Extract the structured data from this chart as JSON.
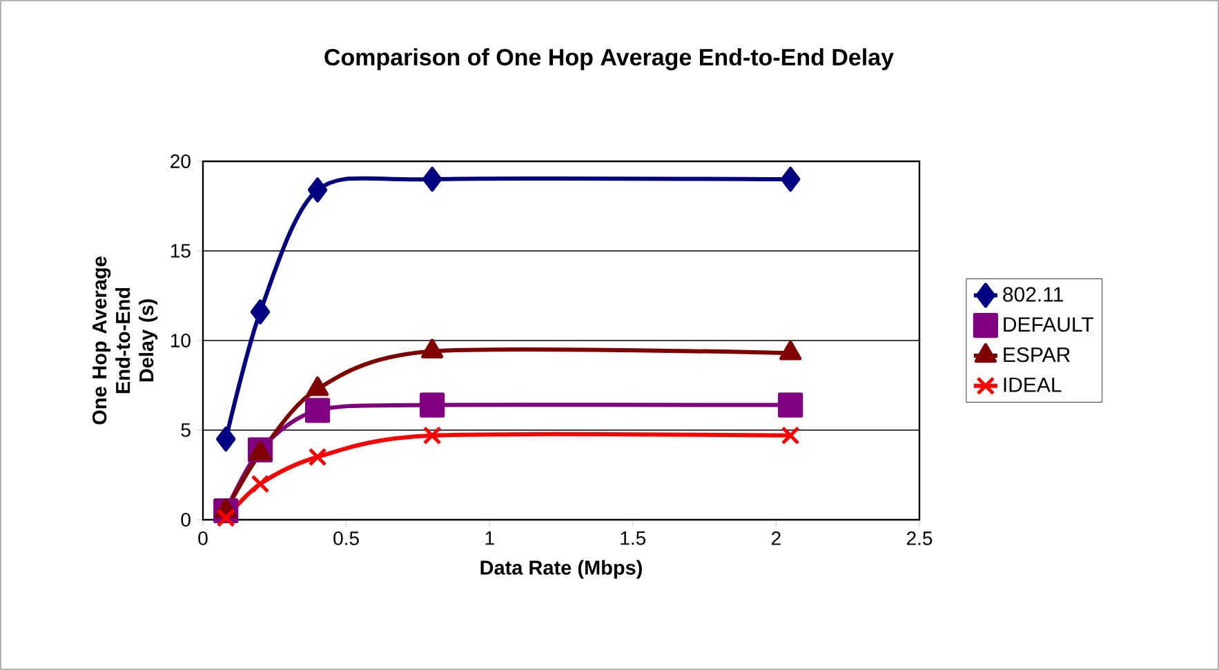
{
  "chart_data": {
    "type": "line",
    "title": "Comparison of One Hop Average End-to-End Delay",
    "xlabel": "Data Rate (Mbps)",
    "ylabel": "One Hop Average End-to-End Delay (s)",
    "x": [
      0.08,
      0.2,
      0.4,
      0.8,
      2.05
    ],
    "series": [
      {
        "name": "802.11",
        "color": "#000080",
        "marker": "diamond",
        "values": [
          4.5,
          11.6,
          18.4,
          19,
          19
        ]
      },
      {
        "name": "DEFAULT",
        "color": "#800080",
        "marker": "square",
        "values": [
          0.5,
          3.9,
          6.1,
          6.4,
          6.4
        ]
      },
      {
        "name": "ESPAR",
        "color": "#800000",
        "marker": "triangle",
        "values": [
          0.5,
          3.7,
          7.3,
          9.4,
          9.3
        ]
      },
      {
        "name": "IDEAL",
        "color": "#ff0000",
        "marker": "cross",
        "values": [
          0.1,
          2.0,
          3.5,
          4.7,
          4.7
        ]
      }
    ],
    "xlim": [
      0,
      2.5
    ],
    "xticks": [
      0,
      0.5,
      1,
      1.5,
      2,
      2.5
    ],
    "ylim": [
      0,
      20
    ],
    "yticks": [
      0,
      5,
      10,
      15,
      20
    ],
    "grid": "y",
    "legend": "right",
    "line_style": "solid"
  }
}
